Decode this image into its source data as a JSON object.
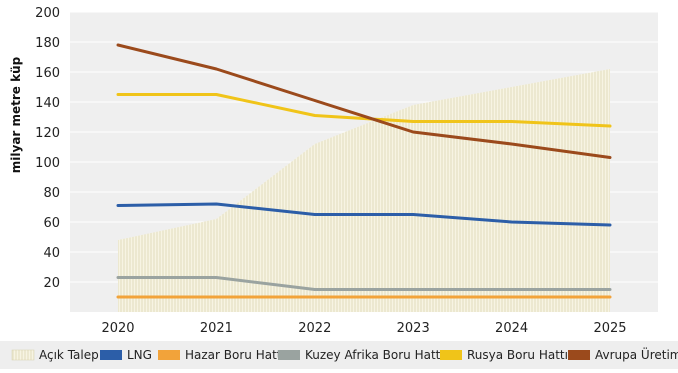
{
  "chart_data": {
    "type": "line",
    "ylabel": "milyar metre küp",
    "xlabel": "",
    "title": "",
    "x": [
      2020,
      2021,
      2022,
      2023,
      2024,
      2025
    ],
    "ylim": [
      0,
      200
    ],
    "yticks": [
      20,
      40,
      60,
      80,
      100,
      120,
      140,
      160,
      180,
      200
    ],
    "grid": "horizontal",
    "legend_position": "bottom",
    "series": [
      {
        "name": "Açık Talep",
        "kind": "area",
        "color": "#f3f0dc",
        "values": [
          48,
          62,
          112,
          138,
          150,
          162
        ]
      },
      {
        "name": "LNG",
        "kind": "line",
        "color": "#2c5ea8",
        "values": [
          71,
          72,
          65,
          65,
          60,
          58
        ]
      },
      {
        "name": "Hazar Boru Hattı",
        "kind": "line",
        "color": "#f2a33a",
        "values": [
          10,
          10,
          10,
          10,
          10,
          10
        ]
      },
      {
        "name": "Kuzey Afrika Boru Hattı",
        "kind": "line",
        "color": "#9aa3a0",
        "values": [
          23,
          23,
          15,
          15,
          15,
          15
        ]
      },
      {
        "name": "Rusya Boru Hattı",
        "kind": "line",
        "color": "#f0c419",
        "values": [
          145,
          145,
          131,
          127,
          127,
          124
        ]
      },
      {
        "name": "Avrupa Üretimi",
        "kind": "line",
        "color": "#9b4a1c",
        "values": [
          178,
          162,
          141,
          120,
          112,
          103
        ]
      }
    ]
  }
}
